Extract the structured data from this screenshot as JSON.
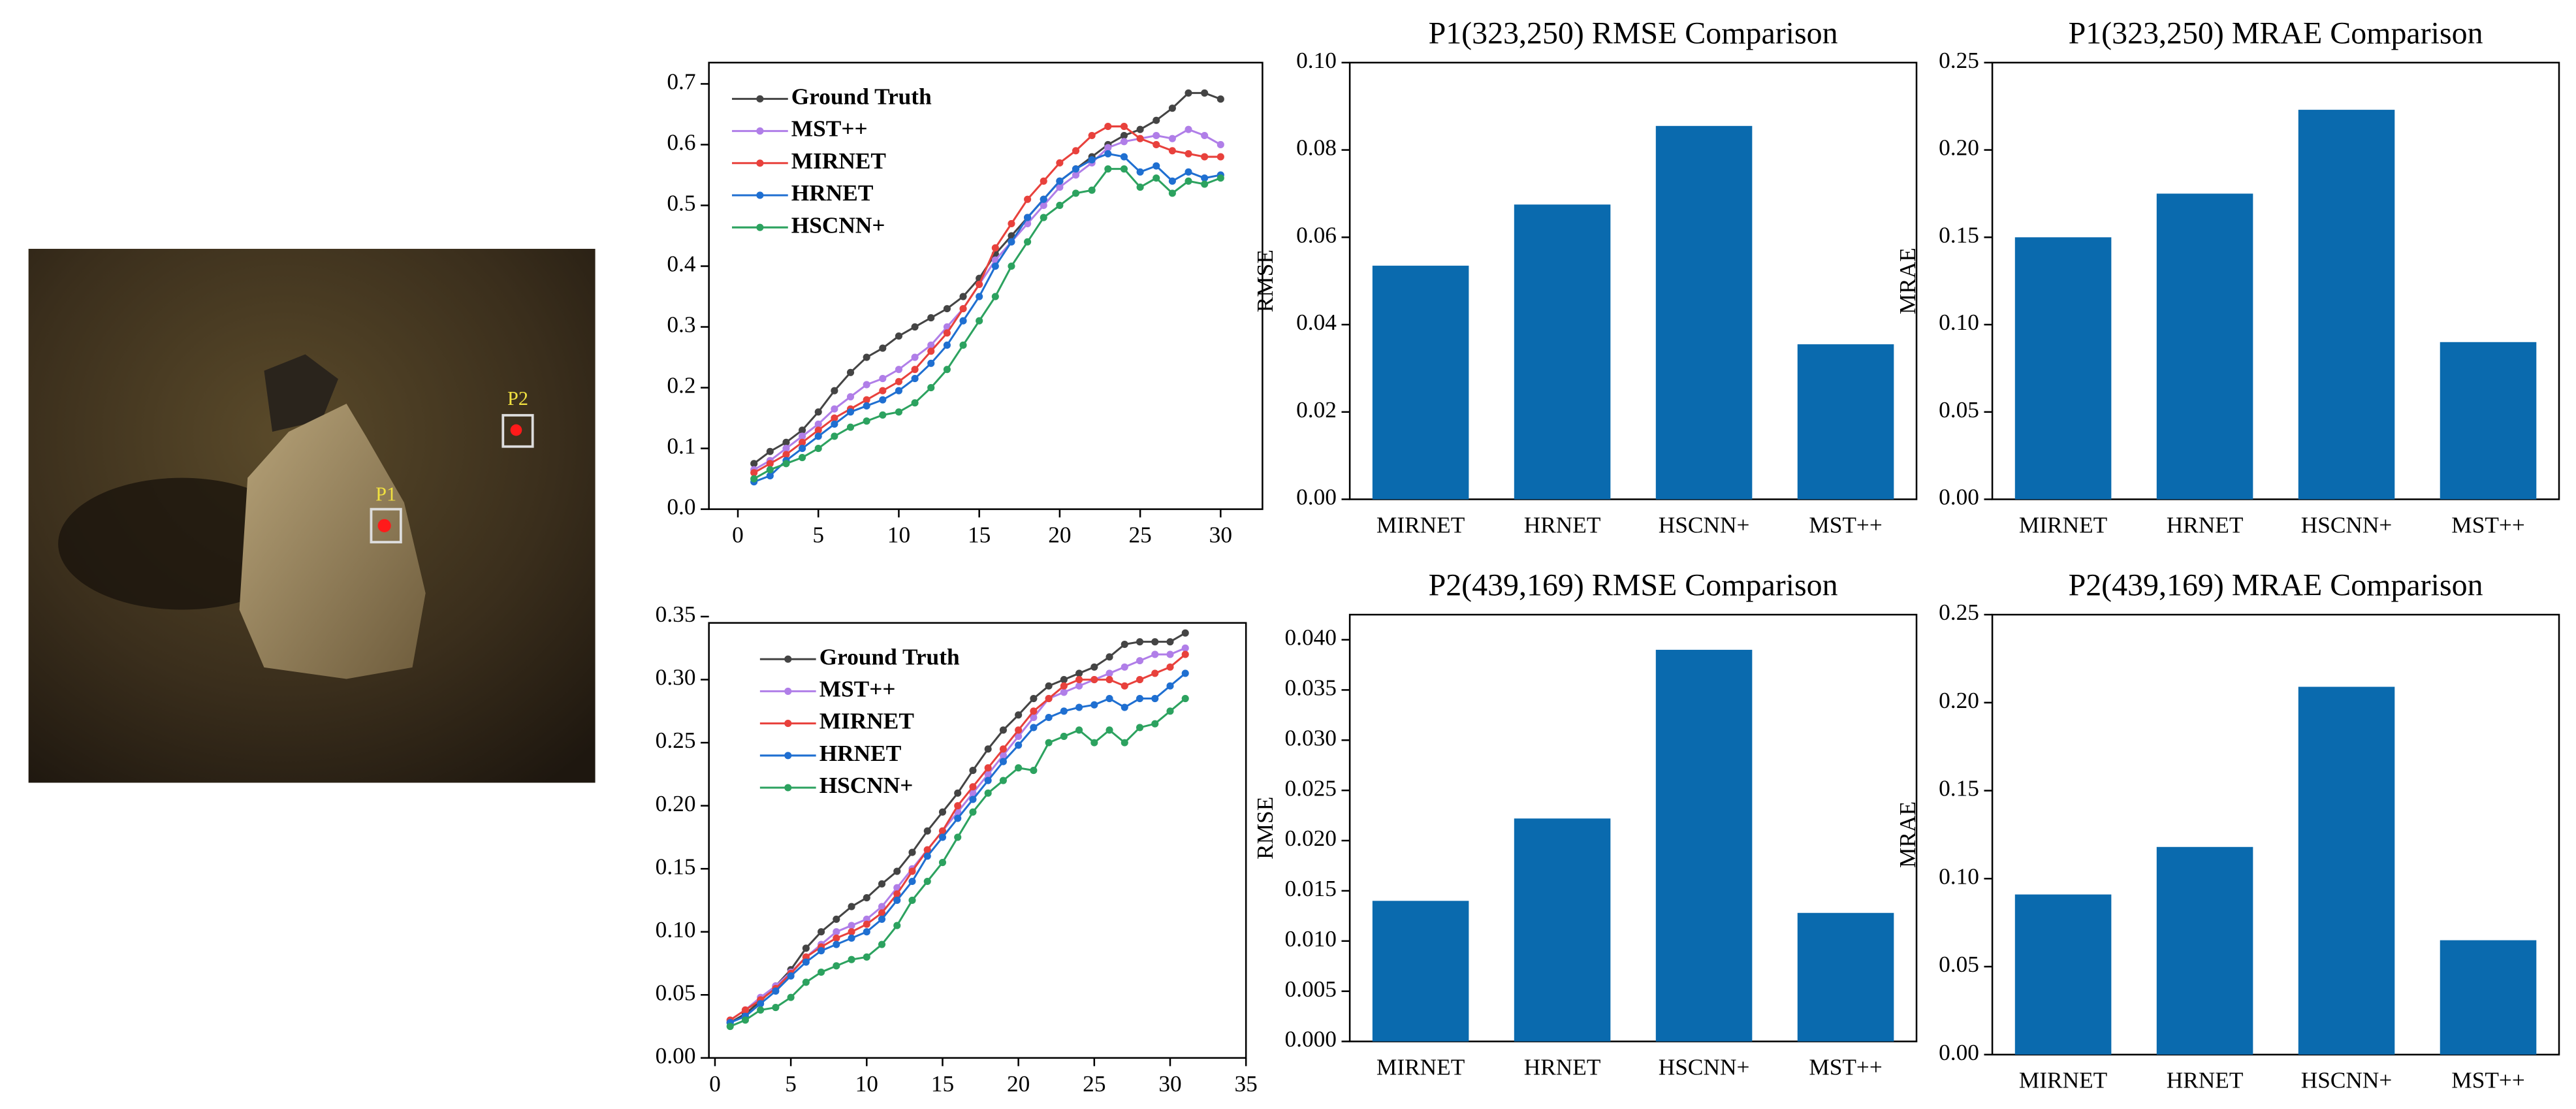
{
  "photo": {
    "points": [
      {
        "label": "P1"
      },
      {
        "label": "P2"
      }
    ]
  },
  "chart_data": [
    {
      "type": "line",
      "xlim": [
        -1.8,
        32.6
      ],
      "ylim": [
        0,
        0.735
      ],
      "xticks": [
        0,
        5,
        10,
        15,
        20,
        25,
        30
      ],
      "yticks": [
        {
          "value": 0,
          "label": "0.0"
        },
        0.1,
        0.2,
        0.3,
        0.4,
        0.5,
        0.6,
        0.7
      ],
      "x": [
        1,
        2,
        3,
        4,
        5,
        6,
        7,
        8,
        9,
        10,
        11,
        12,
        13,
        14,
        15,
        16,
        17,
        18,
        19,
        20,
        21,
        22,
        23,
        24,
        25,
        26,
        27,
        28,
        29,
        30
      ],
      "series": [
        {
          "name": "Ground Truth",
          "color": "#444444",
          "values": [
            0.075,
            0.095,
            0.11,
            0.13,
            0.16,
            0.195,
            0.225,
            0.25,
            0.265,
            0.285,
            0.3,
            0.315,
            0.33,
            0.35,
            0.38,
            0.42,
            0.45,
            0.48,
            0.51,
            0.54,
            0.56,
            0.58,
            0.6,
            0.615,
            0.625,
            0.64,
            0.66,
            0.685,
            0.685,
            0.675
          ]
        },
        {
          "name": "MST++",
          "color": "#b07ee8",
          "values": [
            0.065,
            0.08,
            0.1,
            0.12,
            0.14,
            0.165,
            0.185,
            0.205,
            0.215,
            0.23,
            0.25,
            0.27,
            0.3,
            0.33,
            0.37,
            0.41,
            0.44,
            0.47,
            0.5,
            0.53,
            0.55,
            0.57,
            0.595,
            0.605,
            0.61,
            0.615,
            0.61,
            0.625,
            0.615,
            0.6
          ]
        },
        {
          "name": "MIRNET",
          "color": "#e8413c",
          "values": [
            0.06,
            0.075,
            0.09,
            0.11,
            0.13,
            0.15,
            0.165,
            0.18,
            0.195,
            0.21,
            0.23,
            0.26,
            0.29,
            0.33,
            0.37,
            0.43,
            0.47,
            0.51,
            0.54,
            0.57,
            0.59,
            0.615,
            0.63,
            0.63,
            0.61,
            0.6,
            0.59,
            0.585,
            0.58,
            0.58
          ]
        },
        {
          "name": "HRNET",
          "color": "#1f6fd1",
          "values": [
            0.045,
            0.055,
            0.08,
            0.1,
            0.12,
            0.14,
            0.16,
            0.17,
            0.18,
            0.195,
            0.215,
            0.24,
            0.27,
            0.31,
            0.35,
            0.4,
            0.44,
            0.48,
            0.51,
            0.54,
            0.56,
            0.575,
            0.585,
            0.58,
            0.555,
            0.565,
            0.54,
            0.555,
            0.545,
            0.55
          ]
        },
        {
          "name": "HSCNN+",
          "color": "#2ca25f",
          "values": [
            0.05,
            0.065,
            0.075,
            0.085,
            0.1,
            0.12,
            0.135,
            0.145,
            0.155,
            0.16,
            0.175,
            0.2,
            0.23,
            0.27,
            0.31,
            0.35,
            0.4,
            0.44,
            0.48,
            0.5,
            0.52,
            0.525,
            0.56,
            0.56,
            0.53,
            0.545,
            0.52,
            0.54,
            0.535,
            0.545
          ]
        }
      ]
    },
    {
      "type": "line",
      "xlim": [
        -0.4,
        35
      ],
      "ylim": [
        0,
        0.345
      ],
      "xticks": [
        0,
        5,
        10,
        15,
        20,
        25,
        30,
        35
      ],
      "yticks": [
        {
          "value": 0,
          "label": "0.00"
        },
        0.05,
        {
          "value": 0.1,
          "label": "0.10"
        },
        0.15,
        {
          "value": 0.2,
          "label": "0.20"
        },
        0.25,
        {
          "value": 0.3,
          "label": "0.30"
        },
        0.35
      ],
      "x": [
        1,
        2,
        3,
        4,
        5,
        6,
        7,
        8,
        9,
        10,
        11,
        12,
        13,
        14,
        15,
        16,
        17,
        18,
        19,
        20,
        21,
        22,
        23,
        24,
        25,
        26,
        27,
        28,
        29,
        30,
        31
      ],
      "series": [
        {
          "name": "Ground Truth",
          "color": "#444444",
          "values": [
            0.028,
            0.035,
            0.045,
            0.057,
            0.07,
            0.087,
            0.1,
            0.11,
            0.12,
            0.127,
            0.138,
            0.148,
            0.163,
            0.18,
            0.195,
            0.21,
            0.228,
            0.245,
            0.26,
            0.272,
            0.285,
            0.295,
            0.3,
            0.305,
            0.31,
            0.318,
            0.328,
            0.33,
            0.33,
            0.33,
            0.337
          ]
        },
        {
          "name": "MST++",
          "color": "#b07ee8",
          "values": [
            0.03,
            0.038,
            0.048,
            0.057,
            0.068,
            0.08,
            0.09,
            0.1,
            0.105,
            0.11,
            0.12,
            0.135,
            0.15,
            0.165,
            0.18,
            0.195,
            0.21,
            0.225,
            0.24,
            0.255,
            0.27,
            0.285,
            0.29,
            0.295,
            0.3,
            0.305,
            0.31,
            0.315,
            0.32,
            0.32,
            0.325
          ]
        },
        {
          "name": "MIRNET",
          "color": "#e8413c",
          "values": [
            0.03,
            0.038,
            0.046,
            0.055,
            0.067,
            0.08,
            0.088,
            0.095,
            0.1,
            0.106,
            0.115,
            0.13,
            0.148,
            0.165,
            0.18,
            0.2,
            0.215,
            0.23,
            0.245,
            0.26,
            0.275,
            0.285,
            0.295,
            0.3,
            0.3,
            0.3,
            0.295,
            0.3,
            0.305,
            0.31,
            0.32
          ]
        },
        {
          "name": "HRNET",
          "color": "#1f6fd1",
          "values": [
            0.028,
            0.033,
            0.043,
            0.053,
            0.065,
            0.076,
            0.085,
            0.09,
            0.095,
            0.1,
            0.11,
            0.125,
            0.14,
            0.16,
            0.175,
            0.19,
            0.205,
            0.22,
            0.235,
            0.248,
            0.262,
            0.27,
            0.275,
            0.278,
            0.28,
            0.285,
            0.278,
            0.285,
            0.285,
            0.295,
            0.305
          ]
        },
        {
          "name": "HSCNN+",
          "color": "#2ca25f",
          "values": [
            0.025,
            0.03,
            0.038,
            0.04,
            0.048,
            0.06,
            0.068,
            0.073,
            0.078,
            0.08,
            0.09,
            0.105,
            0.125,
            0.14,
            0.155,
            0.175,
            0.195,
            0.21,
            0.22,
            0.23,
            0.228,
            0.25,
            0.255,
            0.26,
            0.25,
            0.26,
            0.25,
            0.262,
            0.265,
            0.275,
            0.285
          ]
        }
      ]
    },
    {
      "type": "bar",
      "title": "P1(323,250) RMSE Comparison",
      "ylabel": "RMSE",
      "color": "#0a6aae",
      "categories": [
        "MIRNET",
        "HRNET",
        "HSCNN+",
        "MST++"
      ],
      "values": [
        0.0535,
        0.0675,
        0.0855,
        0.0355
      ],
      "ylim": [
        0,
        0.1
      ],
      "yticks": [
        {
          "value": 0,
          "label": "0.00"
        },
        0.02,
        0.04,
        0.06,
        0.08,
        {
          "value": 0.1,
          "label": "0.10"
        }
      ]
    },
    {
      "type": "bar",
      "title": "P1(323,250) MRAE Comparison",
      "ylabel": "MRAE",
      "color": "#0a6aae",
      "categories": [
        "MIRNET",
        "HRNET",
        "HSCNN+",
        "MST++"
      ],
      "values": [
        0.15,
        0.175,
        0.223,
        0.09
      ],
      "ylim": [
        0,
        0.25
      ],
      "yticks": [
        {
          "value": 0,
          "label": "0.00"
        },
        0.05,
        {
          "value": 0.1,
          "label": "0.10"
        },
        0.15,
        {
          "value": 0.2,
          "label": "0.20"
        },
        0.25
      ]
    },
    {
      "type": "bar",
      "title": "P2(439,169) RMSE Comparison",
      "ylabel": "RMSE",
      "color": "#0a6aae",
      "categories": [
        "MIRNET",
        "HRNET",
        "HSCNN+",
        "MST++"
      ],
      "values": [
        0.014,
        0.0222,
        0.039,
        0.0128
      ],
      "ylim": [
        0,
        0.0425
      ],
      "yticks": [
        {
          "value": 0,
          "label": "0.000"
        },
        0.005,
        {
          "value": 0.01,
          "label": "0.010"
        },
        0.015,
        {
          "value": 0.02,
          "label": "0.020"
        },
        0.025,
        {
          "value": 0.03,
          "label": "0.030"
        },
        0.035,
        {
          "value": 0.04,
          "label": "0.040"
        }
      ]
    },
    {
      "type": "bar",
      "title": "P2(439,169) MRAE Comparison",
      "ylabel": "MRAE",
      "color": "#0a6aae",
      "categories": [
        "MIRNET",
        "HRNET",
        "HSCNN+",
        "MST++"
      ],
      "values": [
        0.091,
        0.118,
        0.209,
        0.065
      ],
      "ylim": [
        0,
        0.25
      ],
      "yticks": [
        {
          "value": 0,
          "label": "0.00"
        },
        0.05,
        {
          "value": 0.1,
          "label": "0.10"
        },
        0.15,
        {
          "value": 0.2,
          "label": "0.20"
        },
        0.25
      ]
    }
  ]
}
